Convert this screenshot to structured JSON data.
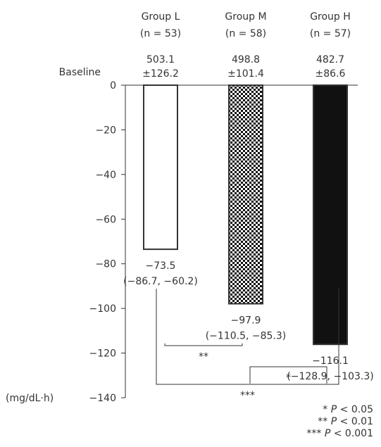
{
  "chart_data": {
    "type": "bar",
    "categories": [
      "Group L",
      "Group M",
      "Group H"
    ],
    "n_labels": [
      "(n = 53)",
      "(n = 58)",
      "(n = 57)"
    ],
    "baseline_label": "Baseline",
    "baseline_means": [
      "503.1",
      "498.8",
      "482.7"
    ],
    "baseline_sds": [
      "±126.2",
      "±101.4",
      "±86.6"
    ],
    "values": [
      -73.5,
      -97.9,
      -116.1
    ],
    "value_labels": [
      "−73.5",
      "−97.9",
      "−116.1"
    ],
    "ci_labels": [
      "(−86.7, −60.2)",
      "(−110.5, −85.3)",
      "(−128.9, −103.3)"
    ],
    "ylabel": "(mg/dL·h)",
    "ylim": [
      -140,
      0
    ],
    "yticks": [
      0,
      -20,
      -40,
      -60,
      -80,
      -100,
      -120,
      -140
    ],
    "ytick_labels": [
      "0",
      "−20",
      "−40",
      "−60",
      "−80",
      "−100",
      "−120",
      "−140"
    ],
    "comparisons": [
      {
        "groups": [
          "Group L",
          "Group M"
        ],
        "stars": "**"
      },
      {
        "groups": [
          "Group M",
          "Group H"
        ],
        "stars": "*"
      },
      {
        "groups": [
          "Group L",
          "Group H"
        ],
        "stars": "***"
      }
    ],
    "significance_key": [
      {
        "stars": "*",
        "text": "P < 0.05"
      },
      {
        "stars": "**",
        "text": "P < 0.01"
      },
      {
        "stars": "***",
        "text": "P < 0.001"
      }
    ],
    "bar_fills": [
      "white",
      "checkered",
      "black"
    ],
    "colors": {
      "axis": "#333333",
      "bar_dark": "#111111"
    },
    "grid": false
  }
}
